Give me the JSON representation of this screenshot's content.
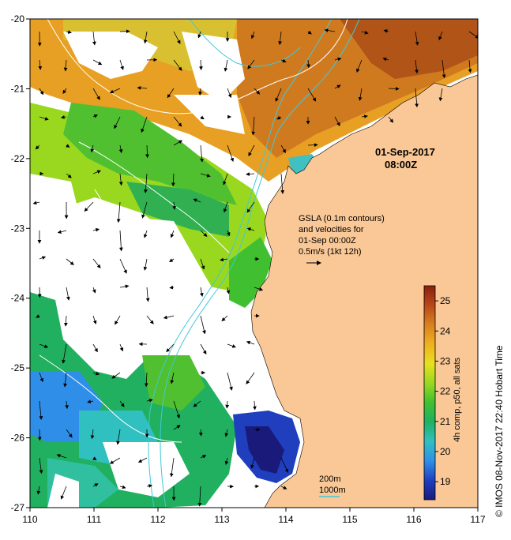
{
  "map": {
    "x_ticks": [
      "110",
      "111",
      "112",
      "113",
      "114",
      "115",
      "116",
      "117"
    ],
    "y_ticks": [
      "-20",
      "-21",
      "-22",
      "-23",
      "-24",
      "-25",
      "-26",
      "-27"
    ],
    "xlim": [
      110,
      117
    ],
    "ylim": [
      -27,
      -20
    ],
    "date_line1": "01-Sep-2017",
    "date_line2": "08:00Z",
    "gsla_lines": [
      "GSLA (0.1m contours)",
      "and velocities for",
      "01-Sep 00:00Z",
      "0.5m/s (1kt 12h)"
    ],
    "depth_labels": [
      "200m",
      "1000m"
    ],
    "land_color": "#f9c896",
    "contour_200_color": "#40c8d8",
    "contour_1000_color": "#40c8d8"
  },
  "colorbar": {
    "ticks": [
      "19",
      "20",
      "21",
      "22",
      "23",
      "24",
      "25"
    ],
    "range": [
      18.4,
      25.5
    ],
    "title": "4h comp, p50, all sats",
    "colors": [
      "#1a1a7a",
      "#1f3fbf",
      "#2f8fe8",
      "#30c0c0",
      "#20b060",
      "#40c030",
      "#9ad820",
      "#e8e020",
      "#f0b020",
      "#d88020",
      "#b84818",
      "#8a2010"
    ]
  },
  "side_label": "© IMOS 08-Nov-2017 22:40 Hobart Time"
}
